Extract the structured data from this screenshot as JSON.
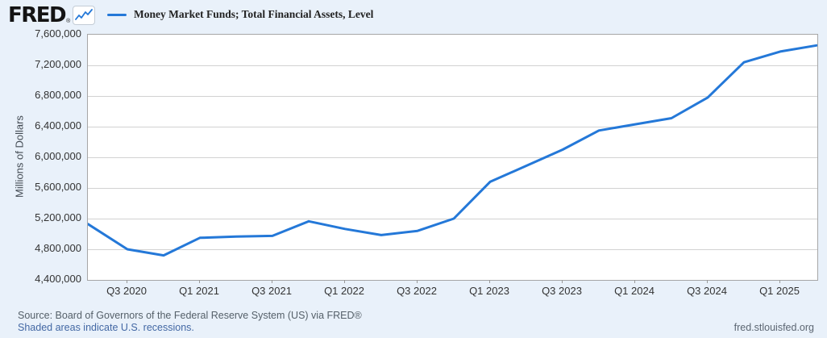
{
  "header": {
    "logo_text": "FRED",
    "logo_reg": "®"
  },
  "colors": {
    "line": "#2478d8",
    "background": "#e9f1fa",
    "plot_background": "#ffffff",
    "gridline": "#d2d2d2",
    "axis_text": "#333333",
    "footer_text": "#556069",
    "link": "#4368a4"
  },
  "footer": {
    "source_line": "Source: Board of Governors of the Federal Reserve System (US) via FRED®",
    "recession_note": "Shaded areas indicate U.S. recessions.",
    "site_url": "fred.stlouisfed.org"
  },
  "chart_data": {
    "type": "line",
    "title": "Money Market Funds; Total Financial Assets, Level",
    "ylabel": "Millions of Dollars",
    "xlabel": "",
    "grid": "horizontal",
    "legend_position": "top-left",
    "line_color": "#2478d8",
    "ylim": [
      4400000,
      7600000
    ],
    "y_ticks": [
      7600000,
      7200000,
      6800000,
      6400000,
      6000000,
      5600000,
      5200000,
      4800000,
      4400000
    ],
    "x_tick_labels": [
      "Q3 2020",
      "Q1 2021",
      "Q3 2021",
      "Q1 2022",
      "Q3 2022",
      "Q1 2023",
      "Q3 2023",
      "Q1 2024",
      "Q3 2024",
      "Q1 2025"
    ],
    "clip_start_value": 5130000,
    "categories": [
      "2020-Q3",
      "2020-Q4",
      "2021-Q1",
      "2021-Q2",
      "2021-Q3",
      "2021-Q4",
      "2022-Q1",
      "2022-Q2",
      "2022-Q3",
      "2022-Q4",
      "2023-Q1",
      "2023-Q2",
      "2023-Q3",
      "2023-Q4",
      "2024-Q1",
      "2024-Q2",
      "2024-Q3",
      "2024-Q4",
      "2025-Q1",
      "2025-Q2"
    ],
    "values": [
      4800000,
      4720000,
      4950000,
      4965000,
      4975000,
      5165000,
      5065000,
      4985000,
      5040000,
      5200000,
      5680000,
      5890000,
      6100000,
      6350000,
      6430000,
      6510000,
      6780000,
      7240000,
      7380000,
      7460000
    ]
  }
}
